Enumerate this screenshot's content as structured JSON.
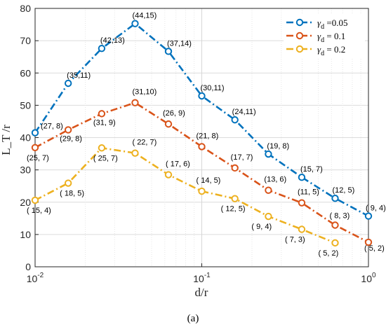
{
  "caption": "(a)",
  "chart_data": {
    "type": "line",
    "xlabel": "d/r",
    "ylabel": "L_T /r",
    "xscale": "log",
    "xlim": [
      0.01,
      1
    ],
    "ylim": [
      0,
      80
    ],
    "yticks": [
      0,
      10,
      20,
      30,
      40,
      50,
      60,
      70,
      80
    ],
    "xticks": [
      {
        "value": 0.01,
        "base": "10",
        "exp": "-2"
      },
      {
        "value": 0.1,
        "base": "10",
        "exp": "-1"
      },
      {
        "value": 1,
        "base": "10",
        "exp": "0"
      }
    ],
    "grid": true,
    "legend_position": "top-right",
    "series": [
      {
        "name": "γ_d =0.05",
        "legend_symbol": "γ",
        "legend_sub": "d",
        "legend_value": " =0.05",
        "color": "#0072BD",
        "x": [
          0.01,
          0.0158,
          0.0251,
          0.0398,
          0.0631,
          0.1,
          0.158,
          0.251,
          0.398,
          0.631,
          1.0
        ],
        "y": [
          41.5,
          56.8,
          67.6,
          75.3,
          66.7,
          52.9,
          45.5,
          34.9,
          27.7,
          21.2,
          15.7
        ],
        "labels": [
          "(27, 8)",
          "(35,11)",
          "(42,13)",
          "(44,15)",
          "(37,14)",
          "(30,11)",
          "(24,11)",
          "(19, 8)",
          "(15, 7)",
          "(12, 5)",
          "( 9, 4)"
        ]
      },
      {
        "name": "γ_d = 0.1",
        "legend_symbol": "γ",
        "legend_sub": "d",
        "legend_value": " = 0.1",
        "color": "#D95319",
        "x": [
          0.01,
          0.0158,
          0.0251,
          0.0398,
          0.0631,
          0.1,
          0.158,
          0.251,
          0.398,
          0.631,
          1.0
        ],
        "y": [
          36.9,
          42.4,
          47.4,
          50.8,
          44.2,
          37.2,
          30.6,
          23.7,
          19.8,
          12.9,
          7.6
        ],
        "labels": [
          "(25, 7)",
          "(29, 8)",
          "(31, 9)",
          "(31,10)",
          "(26, 9)",
          "(21, 8)",
          "(17, 7)",
          "(13, 6)",
          "(11, 5)",
          "( 8, 3)",
          "( 5, 2)"
        ]
      },
      {
        "name": "γ_d = 0.2",
        "legend_symbol": "γ",
        "legend_sub": "d",
        "legend_value": " = 0.2",
        "color": "#EDB120",
        "x": [
          0.01,
          0.0158,
          0.0251,
          0.0398,
          0.0631,
          0.1,
          0.158,
          0.251,
          0.398,
          0.631
        ],
        "y": [
          20.6,
          25.9,
          36.8,
          35.2,
          28.5,
          23.4,
          21.1,
          15.6,
          11.6,
          7.4
        ],
        "labels": [
          "( 15,  4)",
          "( 18,  5)",
          "( 25,  7)",
          "( 22,  7)",
          "( 17,  6)",
          "( 14,  5)",
          "( 12,  5)",
          "( 9,  4)",
          "( 7,  3)",
          "( 5,  2)"
        ]
      }
    ]
  }
}
